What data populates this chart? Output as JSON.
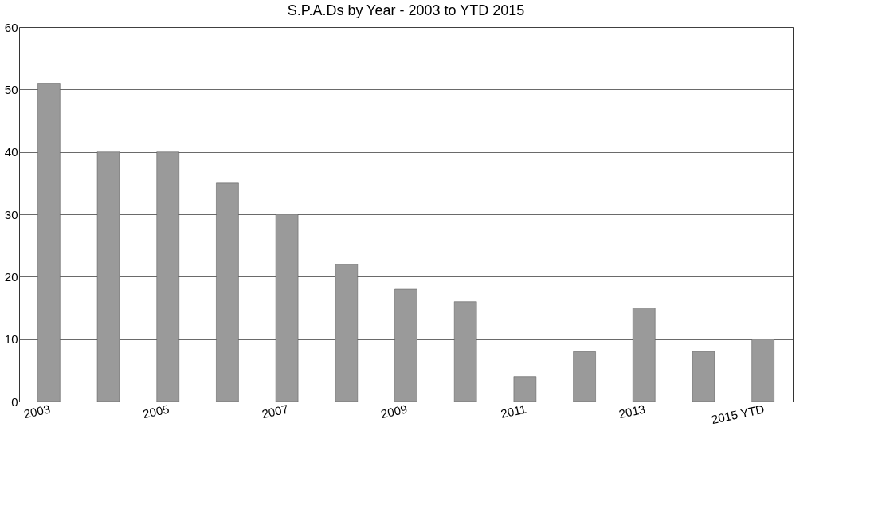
{
  "chart_data": {
    "type": "bar",
    "title": "S.P.A.Ds by Year - 2003 to YTD 2015",
    "categories": [
      "2003",
      null,
      "2005",
      null,
      "2007",
      null,
      "2009",
      null,
      "2011",
      null,
      "2013",
      null,
      "2015 YTD"
    ],
    "values": [
      51,
      40,
      40,
      35,
      30,
      22,
      18,
      16,
      4,
      8,
      15,
      8,
      10
    ],
    "color": "#9a9a9a",
    "ylim": [
      0,
      60
    ],
    "yticks": [
      0,
      10,
      20,
      30,
      40,
      50,
      60
    ],
    "grid": "y"
  }
}
